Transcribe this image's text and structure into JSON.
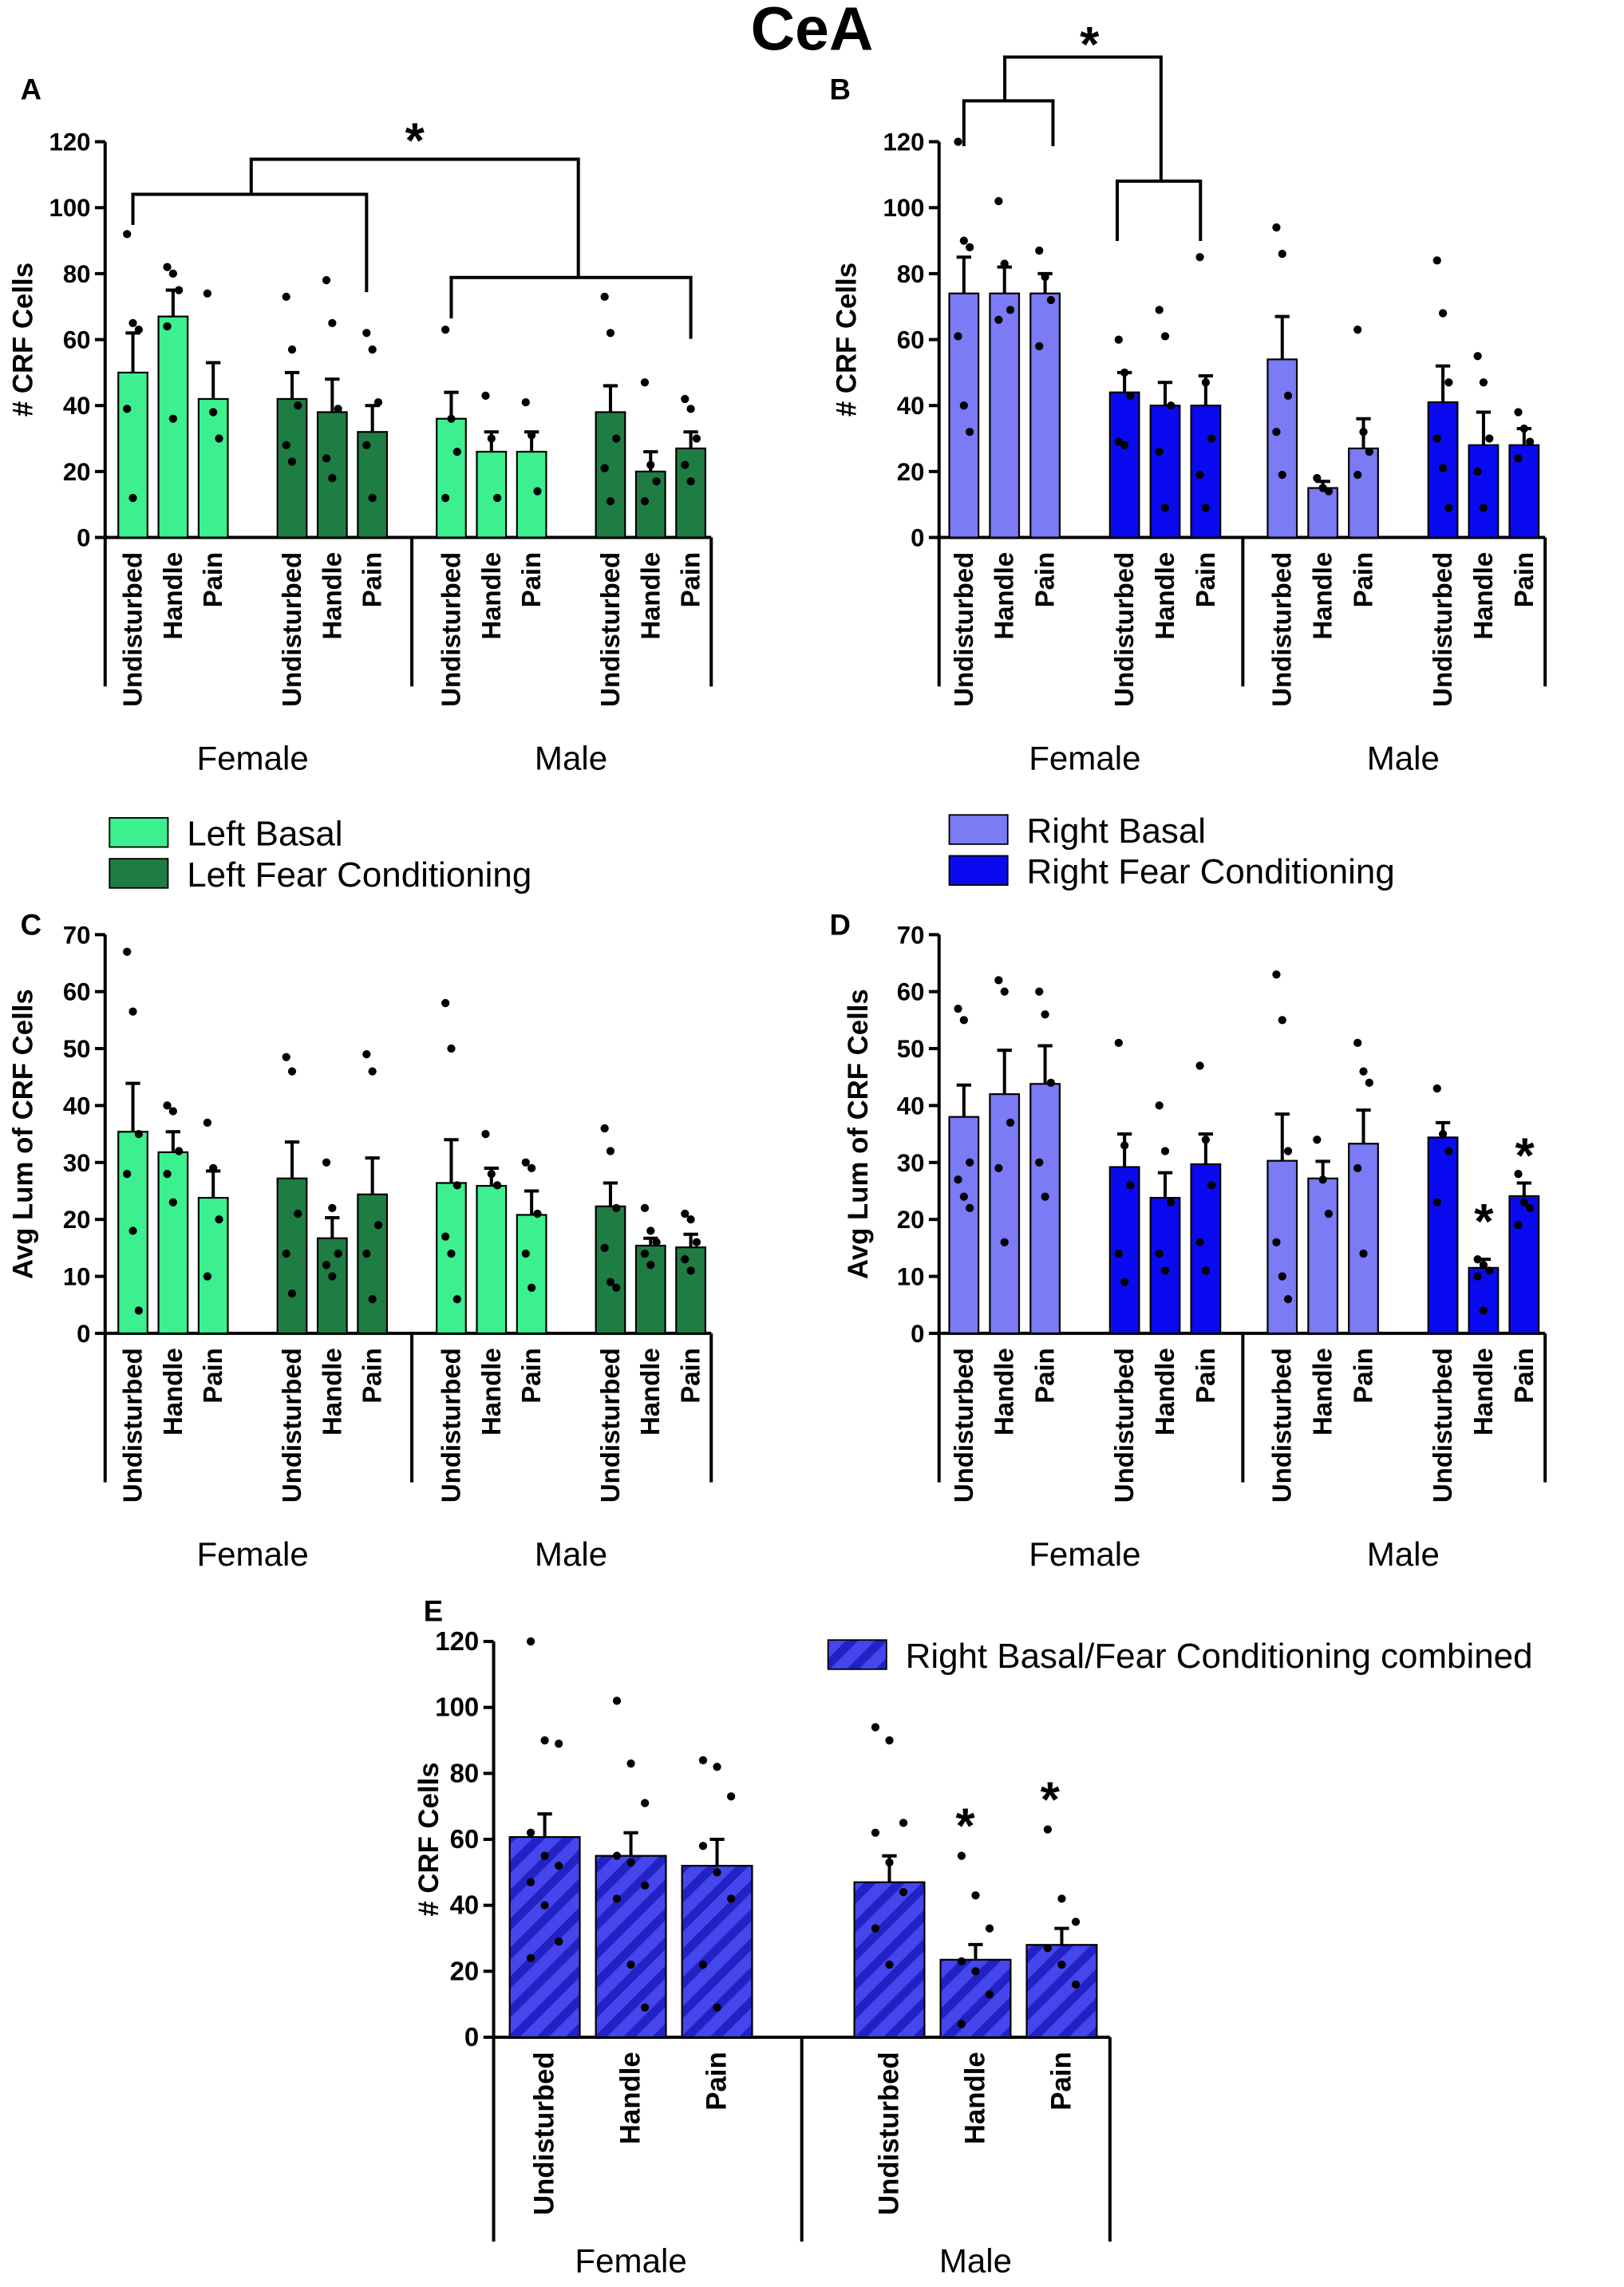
{
  "title": "CeA",
  "chart_data": [
    {
      "type": "bar",
      "label": "A",
      "ylabel": "# CRF Cells",
      "ylim": [
        0,
        120
      ],
      "yticks": [
        0,
        20,
        40,
        60,
        80,
        100,
        120
      ],
      "groups": [
        "Female",
        "Male"
      ],
      "categories": [
        "Undisturbed",
        "Handle",
        "Pain",
        "Undisturbed",
        "Handle",
        "Pain",
        "Undisturbed",
        "Handle",
        "Pain",
        "Undisturbed",
        "Handle",
        "Pain"
      ],
      "annotations": [
        "*"
      ],
      "series": [
        {
          "name": "Left Basal",
          "color": "#3cf08f",
          "values": [
            50,
            67,
            42,
            null,
            null,
            null,
            36,
            26,
            26,
            null,
            null,
            null
          ],
          "errors": [
            12,
            8,
            11,
            null,
            null,
            null,
            8,
            6,
            6,
            null,
            null,
            null
          ],
          "points": [
            [
              92,
              65,
              63,
              39,
              12
            ],
            [
              82,
              80,
              75,
              64,
              36
            ],
            [
              74,
              38,
              30
            ],
            null,
            null,
            null,
            [
              63,
              36,
              26,
              12
            ],
            [
              43,
              30,
              12
            ],
            [
              41,
              31,
              14
            ],
            null,
            null,
            null
          ]
        },
        {
          "name": "Left Fear Conditioning",
          "color": "#1e7d43",
          "values": [
            null,
            null,
            null,
            42,
            38,
            32,
            null,
            null,
            null,
            38,
            20,
            27
          ],
          "errors": [
            null,
            null,
            null,
            8,
            10,
            8,
            null,
            null,
            null,
            8,
            6,
            5
          ],
          "points": [
            null,
            null,
            null,
            [
              73,
              57,
              40,
              28,
              23
            ],
            [
              78,
              65,
              39,
              24,
              18
            ],
            [
              62,
              57,
              41,
              28,
              12
            ],
            null,
            null,
            null,
            [
              73,
              62,
              30,
              21,
              11
            ],
            [
              47,
              22,
              17,
              11
            ],
            [
              42,
              39,
              30,
              22,
              17
            ]
          ]
        }
      ]
    },
    {
      "type": "bar",
      "label": "B",
      "ylabel": "# CRF Cells",
      "ylim": [
        0,
        120
      ],
      "yticks": [
        0,
        20,
        40,
        60,
        80,
        100,
        120
      ],
      "groups": [
        "Female",
        "Male"
      ],
      "categories": [
        "Undisturbed",
        "Handle",
        "Pain",
        "Undisturbed",
        "Handle",
        "Pain",
        "Undisturbed",
        "Handle",
        "Pain",
        "Undisturbed",
        "Handle",
        "Pain"
      ],
      "annotations": [
        "*"
      ],
      "series": [
        {
          "name": "Right Basal",
          "color": "#7b7bf6",
          "values": [
            74,
            74,
            74,
            null,
            null,
            null,
            54,
            15,
            27,
            null,
            null,
            null
          ],
          "errors": [
            11,
            8,
            6,
            null,
            null,
            null,
            13,
            2,
            9,
            null,
            null,
            null
          ],
          "points": [
            [
              120,
              90,
              88,
              61,
              40,
              32
            ],
            [
              102,
              83,
              69,
              66
            ],
            [
              87,
              79,
              72,
              58
            ],
            null,
            null,
            null,
            [
              94,
              86,
              43,
              32,
              19
            ],
            [
              18,
              15,
              14
            ],
            [
              63,
              32,
              26,
              19
            ],
            null,
            null,
            null
          ]
        },
        {
          "name": "Right Fear Conditioning",
          "color": "#0a0af0",
          "values": [
            null,
            null,
            null,
            44,
            40,
            40,
            null,
            null,
            null,
            41,
            28,
            28
          ],
          "errors": [
            null,
            null,
            null,
            6,
            7,
            9,
            null,
            null,
            null,
            11,
            10,
            5
          ],
          "points": [
            null,
            null,
            null,
            [
              60,
              50,
              43,
              29,
              28
            ],
            [
              69,
              61,
              40,
              26,
              9
            ],
            [
              85,
              47,
              30,
              19,
              9
            ],
            null,
            null,
            null,
            [
              84,
              68,
              47,
              30,
              21,
              9
            ],
            [
              55,
              47,
              30,
              20,
              9
            ],
            [
              38,
              33,
              29,
              24
            ]
          ]
        }
      ]
    },
    {
      "type": "bar",
      "label": "C",
      "ylabel": "Avg Lum of CRF Cells",
      "ylim": [
        0,
        70
      ],
      "yticks": [
        0,
        10,
        20,
        30,
        40,
        50,
        60,
        70
      ],
      "groups": [
        "Female",
        "Male"
      ],
      "categories": [
        "Undisturbed",
        "Handle",
        "Pain",
        "Undisturbed",
        "Handle",
        "Pain",
        "Undisturbed",
        "Handle",
        "Pain",
        "Undisturbed",
        "Handle",
        "Pain"
      ],
      "series": [
        {
          "color": "#3cf08f",
          "values": [
            35.4,
            31.8,
            23.8,
            null,
            null,
            null,
            26.4,
            25.9,
            20.8,
            null,
            null,
            null
          ],
          "errors": [
            8.5,
            3.6,
            4.7,
            null,
            null,
            null,
            7.6,
            3.1,
            4.2,
            null,
            null,
            null
          ],
          "points": [
            [
              67,
              56.5,
              35,
              28,
              18,
              4
            ],
            [
              40,
              39,
              32,
              28,
              23
            ],
            [
              37,
              29,
              20,
              10
            ],
            null,
            null,
            null,
            [
              58,
              50,
              26,
              17,
              14,
              6
            ],
            [
              35,
              28,
              26
            ],
            [
              30,
              29,
              21,
              14,
              8
            ],
            null,
            null,
            null
          ]
        },
        {
          "color": "#1e7d43",
          "values": [
            null,
            null,
            null,
            27.2,
            16.7,
            24.4,
            null,
            null,
            null,
            22.3,
            15.4,
            15.1
          ],
          "errors": [
            null,
            null,
            null,
            6.4,
            3.6,
            6.4,
            null,
            null,
            null,
            4.1,
            1.3,
            2.3
          ],
          "points": [
            null,
            null,
            null,
            [
              48.5,
              46,
              21,
              14,
              7
            ],
            [
              30,
              22,
              14,
              12,
              10
            ],
            [
              49,
              46,
              19,
              14,
              6
            ],
            null,
            null,
            null,
            [
              36,
              32,
              22,
              15,
              9,
              8
            ],
            [
              22,
              18,
              16,
              14,
              12
            ],
            [
              21,
              20,
              16,
              13,
              11
            ]
          ]
        }
      ]
    },
    {
      "type": "bar",
      "label": "D",
      "ylabel": "Avg Lum of CRF Cells",
      "ylim": [
        0,
        70
      ],
      "yticks": [
        0,
        10,
        20,
        30,
        40,
        50,
        60,
        70
      ],
      "groups": [
        "Female",
        "Male"
      ],
      "categories": [
        "Undisturbed",
        "Handle",
        "Pain",
        "Undisturbed",
        "Handle",
        "Pain",
        "Undisturbed",
        "Handle",
        "Pain",
        "Undisturbed",
        "Handle",
        "Pain"
      ],
      "annotations": [
        "*",
        "*"
      ],
      "series": [
        {
          "color": "#7b7bf6",
          "values": [
            38,
            42,
            43.8,
            null,
            null,
            null,
            30.3,
            27.2,
            33.3,
            null,
            null,
            null
          ],
          "errors": [
            5.6,
            7.7,
            6.7,
            null,
            null,
            null,
            8.2,
            3,
            5.9,
            null,
            null,
            null
          ],
          "points": [
            [
              57,
              55,
              30,
              27,
              24,
              22
            ],
            [
              62,
              60,
              37,
              29,
              16
            ],
            [
              60,
              56,
              44,
              30,
              24
            ],
            null,
            null,
            null,
            [
              63,
              55,
              32,
              16,
              10,
              6
            ],
            [
              34,
              27,
              21
            ],
            [
              51,
              46,
              44,
              29,
              14
            ],
            null,
            null,
            null
          ]
        },
        {
          "color": "#0a0af0",
          "values": [
            null,
            null,
            null,
            29.2,
            23.8,
            29.7,
            null,
            null,
            null,
            34.4,
            11.5,
            24.1
          ],
          "errors": [
            null,
            null,
            null,
            5.8,
            4.4,
            5.3,
            null,
            null,
            null,
            2.6,
            1.5,
            2.3
          ],
          "points": [
            null,
            null,
            null,
            [
              51,
              33,
              26,
              14,
              9
            ],
            [
              40,
              32,
              23,
              14,
              11
            ],
            [
              47,
              34,
              26,
              16,
              11
            ],
            null,
            null,
            null,
            [
              43,
              35,
              32,
              23
            ],
            [
              13,
              12,
              11,
              10,
              4
            ],
            [
              28,
              23,
              22,
              19
            ]
          ]
        }
      ]
    },
    {
      "type": "bar",
      "label": "E",
      "ylabel": "# CRF Cells",
      "ylim": [
        0,
        120
      ],
      "yticks": [
        0,
        20,
        40,
        60,
        80,
        100,
        120
      ],
      "groups": [
        "Female",
        "Male"
      ],
      "categories": [
        "Undisturbed",
        "Handle",
        "Pain",
        "Undisturbed",
        "Handle",
        "Pain"
      ],
      "annotations": [
        "*",
        "*"
      ],
      "series": [
        {
          "name": "Right Basal/Fear Conditioning combined",
          "color": "#4646ee",
          "hatch": true,
          "values": [
            60.7,
            55,
            52,
            47,
            23.5,
            28
          ],
          "errors": [
            7,
            7,
            8,
            8,
            4.6,
            5
          ],
          "points": [
            [
              120,
              90,
              89,
              62,
              55,
              52,
              47,
              40,
              29,
              24
            ],
            [
              102,
              83,
              71,
              55,
              53,
              46,
              42,
              22,
              9
            ],
            [
              84,
              82,
              73,
              58,
              50,
              42,
              22,
              9
            ],
            [
              94,
              90,
              65,
              62,
              53,
              44,
              33,
              22
            ],
            [
              55,
              43,
              33,
              23,
              20,
              13,
              4
            ],
            [
              63,
              42,
              35,
              27,
              22,
              16
            ]
          ]
        }
      ]
    }
  ]
}
